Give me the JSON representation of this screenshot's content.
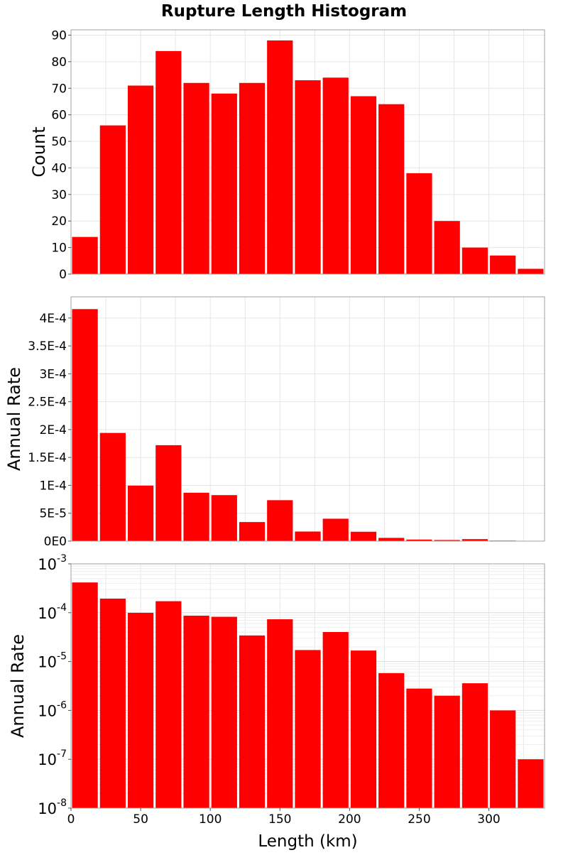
{
  "figure": {
    "title": "Rupture Length Histogram"
  },
  "chart_data": [
    {
      "type": "bar",
      "title": "Rupture Length Histogram",
      "xlabel": "",
      "ylabel": "Count",
      "bin_width": 20,
      "x": [
        10,
        30,
        50,
        70,
        90,
        110,
        130,
        150,
        170,
        190,
        210,
        230,
        250,
        270,
        290,
        310,
        330
      ],
      "values": [
        14,
        56,
        71,
        84,
        72,
        68,
        72,
        88,
        73,
        74,
        67,
        64,
        38,
        20,
        10,
        7,
        2
      ],
      "xlim": [
        0,
        340
      ],
      "ylim": [
        0,
        92
      ],
      "yscale": "linear",
      "yticks": [
        0,
        10,
        20,
        30,
        40,
        50,
        60,
        70,
        80,
        90
      ],
      "ytick_labels": [
        "0",
        "10",
        "20",
        "30",
        "40",
        "50",
        "60",
        "70",
        "80",
        "90"
      ],
      "color": "#ff0000",
      "grid": true
    },
    {
      "type": "bar",
      "xlabel": "",
      "ylabel": "Annual Rate",
      "bin_width": 20,
      "x": [
        10,
        30,
        50,
        70,
        90,
        110,
        130,
        150,
        170,
        190,
        210,
        230,
        250,
        270,
        290,
        310,
        330
      ],
      "values": [
        0.000416,
        0.000194,
        9.95e-05,
        0.000172,
        8.68e-05,
        8.25e-05,
        3.42e-05,
        7.34e-05,
        1.72e-05,
        4.02e-05,
        1.68e-05,
        5.8e-06,
        2.8e-06,
        2e-06,
        3.6e-06,
        1e-06,
        1e-07
      ],
      "xlim": [
        0,
        340
      ],
      "ylim": [
        0,
        0.000438
      ],
      "yscale": "linear",
      "yticks": [
        0,
        5e-05,
        0.0001,
        0.00015,
        0.0002,
        0.00025,
        0.0003,
        0.00035,
        0.0004
      ],
      "ytick_labels": [
        "0E0",
        "5E-5",
        "1E-4",
        "1.5E-4",
        "2E-4",
        "2.5E-4",
        "3E-4",
        "3.5E-4",
        "4E-4"
      ],
      "color": "#ff0000",
      "grid": true
    },
    {
      "type": "bar",
      "xlabel": "Length (km)",
      "ylabel": "Annual Rate",
      "bin_width": 20,
      "x": [
        10,
        30,
        50,
        70,
        90,
        110,
        130,
        150,
        170,
        190,
        210,
        230,
        250,
        270,
        290,
        310,
        330
      ],
      "values": [
        0.000416,
        0.000194,
        9.95e-05,
        0.000172,
        8.68e-05,
        8.25e-05,
        3.42e-05,
        7.34e-05,
        1.72e-05,
        4.02e-05,
        1.68e-05,
        5.8e-06,
        2.8e-06,
        2e-06,
        3.6e-06,
        1e-06,
        1e-07
      ],
      "xlim": [
        0,
        340
      ],
      "ylim": [
        1e-08,
        0.001
      ],
      "yscale": "log",
      "yticks": [
        1e-08,
        1e-07,
        1e-06,
        1e-05,
        0.0001,
        0.001
      ],
      "ytick_labels": [
        {
          "base": "10",
          "exp": "-8"
        },
        {
          "base": "10",
          "exp": "-7"
        },
        {
          "base": "10",
          "exp": "-6"
        },
        {
          "base": "10",
          "exp": "-5"
        },
        {
          "base": "10",
          "exp": "-4"
        },
        {
          "base": "10",
          "exp": "-3"
        }
      ],
      "xticks": [
        0,
        50,
        100,
        150,
        200,
        250,
        300
      ],
      "xtick_labels": [
        "0",
        "50",
        "100",
        "150",
        "200",
        "250",
        "300"
      ],
      "color": "#ff0000",
      "grid": true
    }
  ]
}
